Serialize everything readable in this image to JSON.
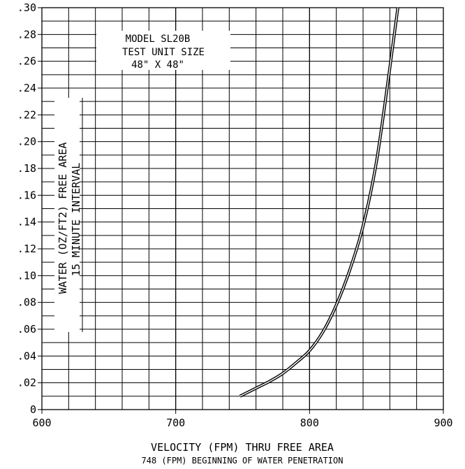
{
  "chart_data": {
    "type": "line",
    "title": "",
    "xlabel": "VELOCITY (FPM) THRU FREE AREA",
    "xlabel_note": "748 (FPM) BEGINNING OF WATER PENETRATION",
    "ylabel_line1": "WATER (OZ/FT2) FREE AREA",
    "ylabel_line2": "15 MINUTE INTERVAL",
    "xlim": [
      600,
      900
    ],
    "ylim": [
      0,
      0.3
    ],
    "x_ticks": [
      600,
      700,
      800,
      900
    ],
    "x_tick_labels": [
      "600",
      "700",
      "800",
      "900"
    ],
    "y_ticks": [
      0,
      0.02,
      0.04,
      0.06,
      0.08,
      0.1,
      0.12,
      0.14,
      0.16,
      0.18,
      0.2,
      0.22,
      0.24,
      0.26,
      0.28,
      0.3
    ],
    "y_tick_labels": [
      "0",
      ".02",
      ".04",
      ".06",
      ".08",
      ".10",
      ".12",
      ".14",
      ".16",
      ".18",
      ".20",
      ".22",
      ".24",
      ".26",
      ".28",
      ".30"
    ],
    "grid": true,
    "x_grid_step": 20,
    "y_grid_step": 0.01,
    "annotation": [
      "MODEL SL20B",
      "TEST UNIT SIZE",
      "48\" X 48\""
    ],
    "series": [
      {
        "x": [
          748,
          760,
          770,
          780,
          790,
          800,
          810,
          820,
          830,
          840,
          850,
          860,
          866
        ],
        "y": [
          0.01,
          0.016,
          0.021,
          0.027,
          0.035,
          0.044,
          0.058,
          0.078,
          0.104,
          0.137,
          0.185,
          0.255,
          0.3
        ]
      }
    ]
  }
}
